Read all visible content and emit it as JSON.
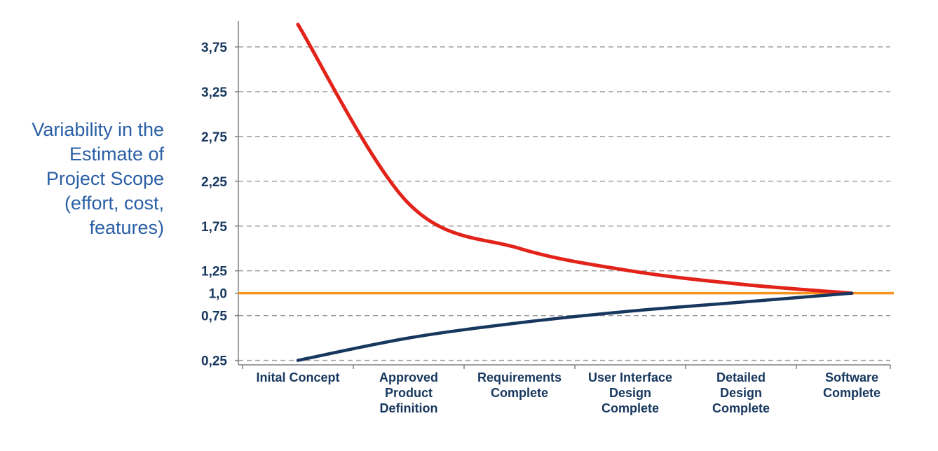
{
  "page": {
    "background": "#ffffff"
  },
  "chart_data": {
    "type": "line",
    "title": "",
    "legend": "none",
    "grid": "dashed-horizontal",
    "ylim": [
      0.2,
      4.0
    ],
    "side_label": {
      "lines": [
        "Variability in the",
        "Estimate of",
        "Project Scope",
        "(effort, cost,",
        "features)"
      ],
      "color": "#2a5fa5"
    },
    "categories": [
      [
        "Inital Concept"
      ],
      [
        "Approved",
        "Product",
        "Definition"
      ],
      [
        "Requirements",
        "Complete"
      ],
      [
        "User Interface",
        "Design",
        "Complete"
      ],
      [
        "Detailed",
        "Design",
        "Complete"
      ],
      [
        "Software",
        "Complete"
      ]
    ],
    "yticks": [
      {
        "label": "3,75",
        "value": 3.75,
        "grid": true
      },
      {
        "label": "3,25",
        "value": 3.25,
        "grid": true
      },
      {
        "label": "2,75",
        "value": 2.75,
        "grid": true
      },
      {
        "label": "2,25",
        "value": 2.25,
        "grid": true
      },
      {
        "label": "1,75",
        "value": 1.75,
        "grid": true
      },
      {
        "label": "1,25",
        "value": 1.25,
        "grid": true
      },
      {
        "label": "1,0",
        "value": 1.0,
        "grid": false
      },
      {
        "label": "0,75",
        "value": 0.75,
        "grid": true
      },
      {
        "label": "0,25",
        "value": 0.25,
        "grid": true
      }
    ],
    "series": [
      {
        "name": "upper-bound-estimate",
        "color": "#e2231a",
        "width": 5,
        "values": [
          4.0,
          2.0,
          1.5,
          1.25,
          1.1,
          1.0
        ]
      },
      {
        "name": "lower-bound-estimate",
        "color": "#17375e",
        "width": 4.5,
        "values": [
          0.25,
          0.5,
          0.67,
          0.8,
          0.9,
          1.0
        ]
      }
    ],
    "baseline": {
      "name": "final-value-line",
      "color": "#f7941e",
      "width": 3.5,
      "value": 1.0
    },
    "colors": {
      "axis": "#808080",
      "grid": "#999999",
      "tick_label": "#17375e",
      "category_label": "#17375e"
    }
  }
}
